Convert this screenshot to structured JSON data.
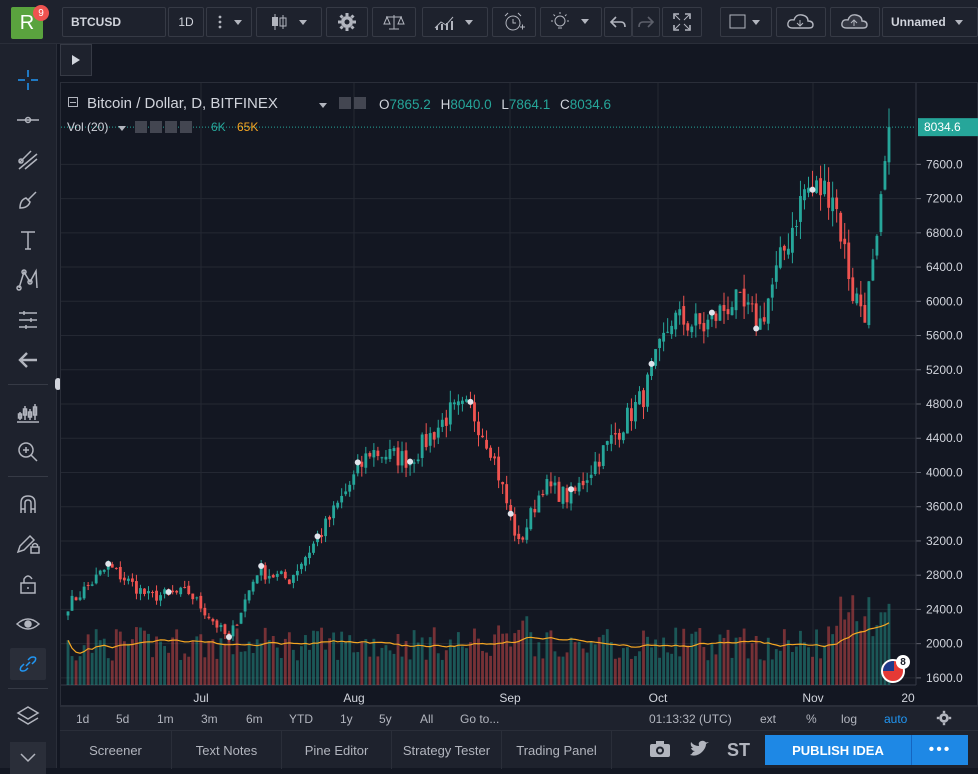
{
  "app": {
    "logo_letter": "R",
    "notif_count": "9"
  },
  "toolbar": {
    "symbol": "BTCUSD",
    "interval": "1D",
    "layout_name": "Unnamed"
  },
  "legend": {
    "title": "Bitcoin / Dollar, D, BITFINEX",
    "o_label": "O",
    "o_value": "7865.2",
    "h_label": "H",
    "h_value": "8040.0",
    "l_label": "L",
    "l_value": "7864.1",
    "c_label": "C",
    "c_value": "8034.6",
    "vol_title": "Vol (20)",
    "vol_value": "6K",
    "vol_ma_value": "65K"
  },
  "price_axis": {
    "ticks": [
      "7600.0",
      "7200.0",
      "6800.0",
      "6400.0",
      "6000.0",
      "5600.0",
      "5200.0",
      "4800.0",
      "4400.0",
      "4000.0",
      "3600.0",
      "3200.0",
      "2800.0",
      "2400.0",
      "2000.0",
      "1600.0"
    ],
    "last_price": "8034.6"
  },
  "time_axis": {
    "labels": [
      "Jul",
      "Aug",
      "Sep",
      "Oct",
      "Nov",
      "20"
    ]
  },
  "event_badge": "8",
  "bottom_bar": {
    "timeframes": [
      "1d",
      "5d",
      "1m",
      "3m",
      "6m",
      "YTD",
      "1y",
      "5y",
      "All"
    ],
    "goto": "Go to...",
    "clock": "01:13:32 (UTC)",
    "ext": "ext",
    "percent": "%",
    "log": "log",
    "auto": "auto"
  },
  "tabs": {
    "screener": "Screener",
    "text_notes": "Text Notes",
    "pine_editor": "Pine Editor",
    "strategy_tester": "Strategy Tester",
    "trading_panel": "Trading Panel",
    "stocktwits": "ST",
    "publish": "PUBLISH IDEA",
    "more": "•••"
  },
  "colors": {
    "up": "#26a69a",
    "down": "#ef5350",
    "background": "#131722",
    "accent": "#1e88e5",
    "ma_line": "#f5a623"
  },
  "chart_data": {
    "type": "candlestick",
    "symbol": "BTCUSD",
    "ylim": [
      1400,
      8200
    ],
    "x_labels": [
      "Jul",
      "Aug",
      "Sep",
      "Oct",
      "Nov",
      "20"
    ],
    "anchors": [
      {
        "day": 0,
        "close": 2450
      },
      {
        "day": 10,
        "close": 2900
      },
      {
        "day": 20,
        "close": 2550
      },
      {
        "day": 30,
        "close": 2600
      },
      {
        "day": 40,
        "close": 2050
      },
      {
        "day": 47,
        "close": 2850
      },
      {
        "day": 55,
        "close": 2750
      },
      {
        "day": 63,
        "close": 3300
      },
      {
        "day": 75,
        "close": 4250
      },
      {
        "day": 85,
        "close": 4150
      },
      {
        "day": 95,
        "close": 4700
      },
      {
        "day": 100,
        "close": 4750
      },
      {
        "day": 105,
        "close": 4300
      },
      {
        "day": 112,
        "close": 3150
      },
      {
        "day": 118,
        "close": 3850
      },
      {
        "day": 125,
        "close": 3700
      },
      {
        "day": 133,
        "close": 4250
      },
      {
        "day": 143,
        "close": 4900
      },
      {
        "day": 150,
        "close": 5800
      },
      {
        "day": 158,
        "close": 5700
      },
      {
        "day": 165,
        "close": 6000
      },
      {
        "day": 172,
        "close": 5750
      },
      {
        "day": 178,
        "close": 6600
      },
      {
        "day": 183,
        "close": 7300
      },
      {
        "day": 190,
        "close": 7300
      },
      {
        "day": 195,
        "close": 6100
      },
      {
        "day": 198,
        "close": 5900
      },
      {
        "day": 201,
        "close": 6600
      },
      {
        "day": 204,
        "close": 8034.6
      }
    ],
    "last": {
      "open": 7865.2,
      "high": 8040.0,
      "low": 7864.1,
      "close": 8034.6
    },
    "volume": {
      "last": "6K",
      "ma": "65K"
    }
  }
}
